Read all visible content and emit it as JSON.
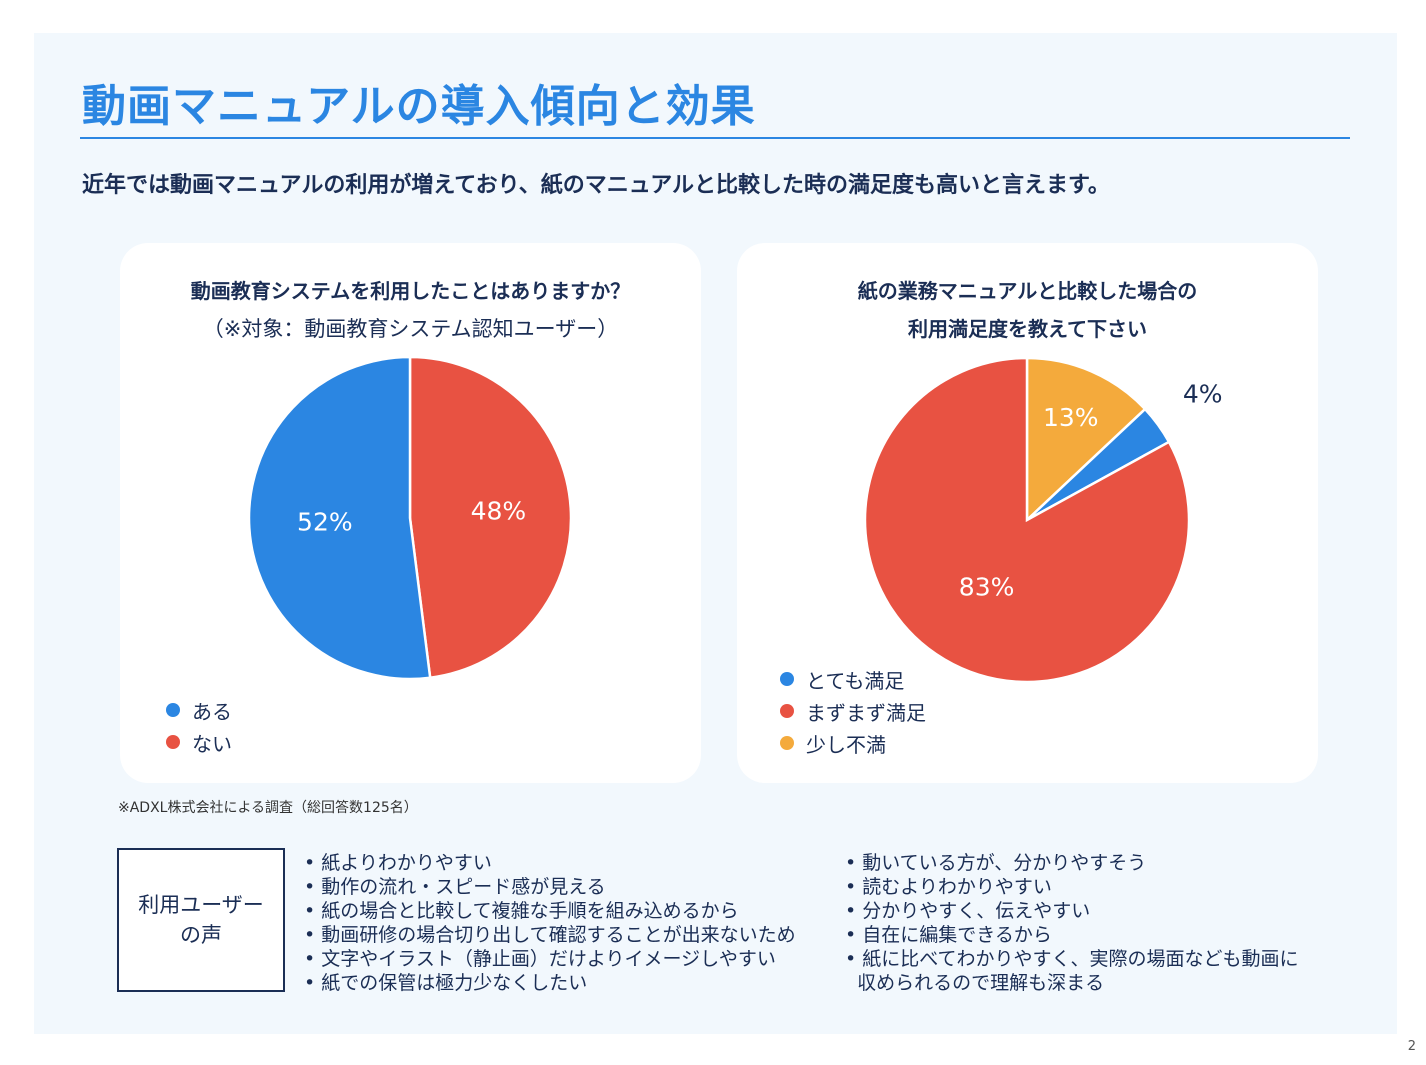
{
  "title": "動画マニュアルの導入傾向と効果",
  "subtitle": "近年では動画マニュアルの利用が増えており、紙のマニュアルと比較した時の満足度も高いと言えます。",
  "chart_data": [
    {
      "type": "pie",
      "title": "動画教育システムを利用したことはありますか？",
      "subtitle": "（※対象：動画教育システム認知ユーザー）",
      "slices": [
        {
          "label": "ない",
          "value": 48,
          "display": "48%",
          "color": "#e85242"
        },
        {
          "label": "ある",
          "value": 52,
          "display": "52%",
          "color": "#2b86e2"
        }
      ],
      "legend": [
        {
          "label": "ある",
          "color": "#2b86e2"
        },
        {
          "label": "ない",
          "color": "#e85242"
        }
      ],
      "legend_position": "bottom-left"
    },
    {
      "type": "pie",
      "title_lines": [
        "紙の業務マニュアルと比較した場合の",
        "利用満足度を教えて下さい"
      ],
      "slices": [
        {
          "label": "少し不満",
          "value": 13,
          "display": "13%",
          "color": "#f4aa3c"
        },
        {
          "label": "とても満足",
          "value": 4,
          "display": "4%",
          "color": "#2b86e2"
        },
        {
          "label": "まずまず満足",
          "value": 83,
          "display": "83%",
          "color": "#e85242"
        }
      ],
      "legend": [
        {
          "label": "とても満足",
          "color": "#2b86e2"
        },
        {
          "label": "まずまず満足",
          "color": "#e85242"
        },
        {
          "label": "少し不満",
          "color": "#f4aa3c"
        }
      ],
      "legend_position": "bottom-left"
    }
  ],
  "source_note": "※ADXL株式会社による調査（総回答数125名）",
  "voices": {
    "label_lines": [
      "利用ユーザー",
      "の声"
    ],
    "left": [
      "紙よりわかりやすい",
      "動作の流れ・スピード感が見える",
      "紙の場合と比較して複雑な手順を組み込めるから",
      "動画研修の場合切り出して確認することが出来ないため",
      "文字やイラスト（静止画）だけよりイメージしやすい",
      "紙での保管は極力少なくしたい"
    ],
    "right": [
      "動いている方が、分かりやすそう",
      "読むよりわかりやすい",
      "分かりやすく、伝えやすい",
      "自在に編集できるから",
      "紙に比べてわかりやすく、実際の場面なども動画に",
      "収められるので理解も深まる"
    ]
  },
  "page_number": "2"
}
